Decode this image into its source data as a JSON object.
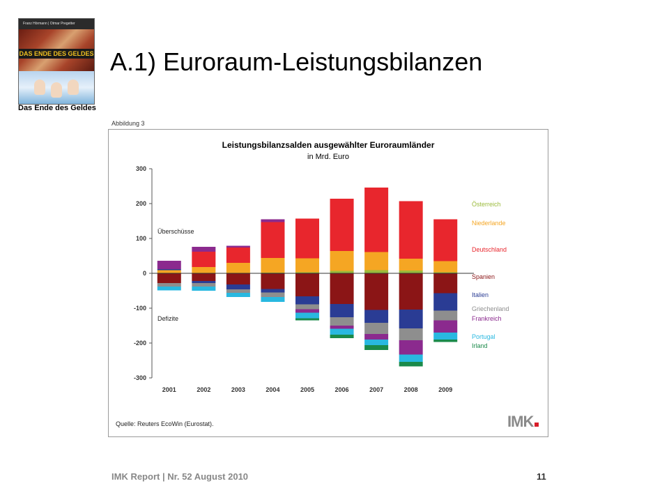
{
  "book": {
    "top_text": "Franz Hörmann | Otmar Pregetter",
    "band_text": "DAS ENDE DES GELDES",
    "caption": "Das Ende des Geldes"
  },
  "slide": {
    "title": "A.1)  Euroraum-Leistungsbilanzen"
  },
  "figure_label": "Abbildung 3",
  "source": "Quelle: Reuters EcoWin (Eurostat).",
  "logo_text": "IMK",
  "footer": {
    "text": "IMK Report  |  Nr. 52   August 2010",
    "page": "11"
  },
  "chart_data": {
    "type": "bar",
    "stacked": true,
    "title": "Leistungsbilanzsalden ausgewählter Euroraumländer",
    "subtitle": "in Mrd. Euro",
    "xlabel": "",
    "ylabel": "",
    "ylim": [
      -300,
      300
    ],
    "yticks": [
      300,
      200,
      100,
      0,
      -100,
      -200,
      -300
    ],
    "grid": false,
    "legend_position": "right",
    "annotations": [
      "Überschüsse",
      "Defizite"
    ],
    "categories": [
      "2001",
      "2002",
      "2003",
      "2004",
      "2005",
      "2006",
      "2007",
      "2008",
      "2009"
    ],
    "series": [
      {
        "name": "Österreich",
        "color": "#9bbb3c",
        "values": [
          0,
          0,
          0,
          2,
          3,
          7,
          9,
          8,
          3
        ]
      },
      {
        "name": "Niederlande",
        "color": "#f5a623",
        "values": [
          9,
          18,
          30,
          42,
          40,
          57,
          52,
          34,
          32
        ]
      },
      {
        "name": "Deutschland",
        "color": "#e8262d",
        "values": [
          0,
          44,
          44,
          103,
          114,
          150,
          185,
          165,
          120
        ]
      },
      {
        "name": "Spanien",
        "color": "#8b1516",
        "values": [
          -28,
          -22,
          -32,
          -45,
          -66,
          -88,
          -105,
          -104,
          -57
        ]
      },
      {
        "name": "Italien",
        "color": "#2a3c94",
        "values": [
          3,
          -6,
          -14,
          -10,
          -23,
          -38,
          -37,
          -54,
          -50
        ]
      },
      {
        "name": "Griechenland",
        "color": "#8e8e8e",
        "values": [
          -10,
          -10,
          -10,
          -13,
          -14,
          -24,
          -32,
          -34,
          -28
        ]
      },
      {
        "name": "Frankreich",
        "color": "#8b2a8e",
        "values": [
          24,
          14,
          5,
          8,
          -10,
          -9,
          -16,
          -41,
          -35
        ]
      },
      {
        "name": "Portugal",
        "color": "#29b8e0",
        "values": [
          -11,
          -12,
          -12,
          -14,
          -16,
          -17,
          -16,
          -21,
          -20
        ]
      },
      {
        "name": "Irland",
        "color": "#1a8a4a",
        "values": [
          0,
          0,
          0,
          0,
          -6,
          -10,
          -14,
          -13,
          -7
        ]
      }
    ]
  }
}
